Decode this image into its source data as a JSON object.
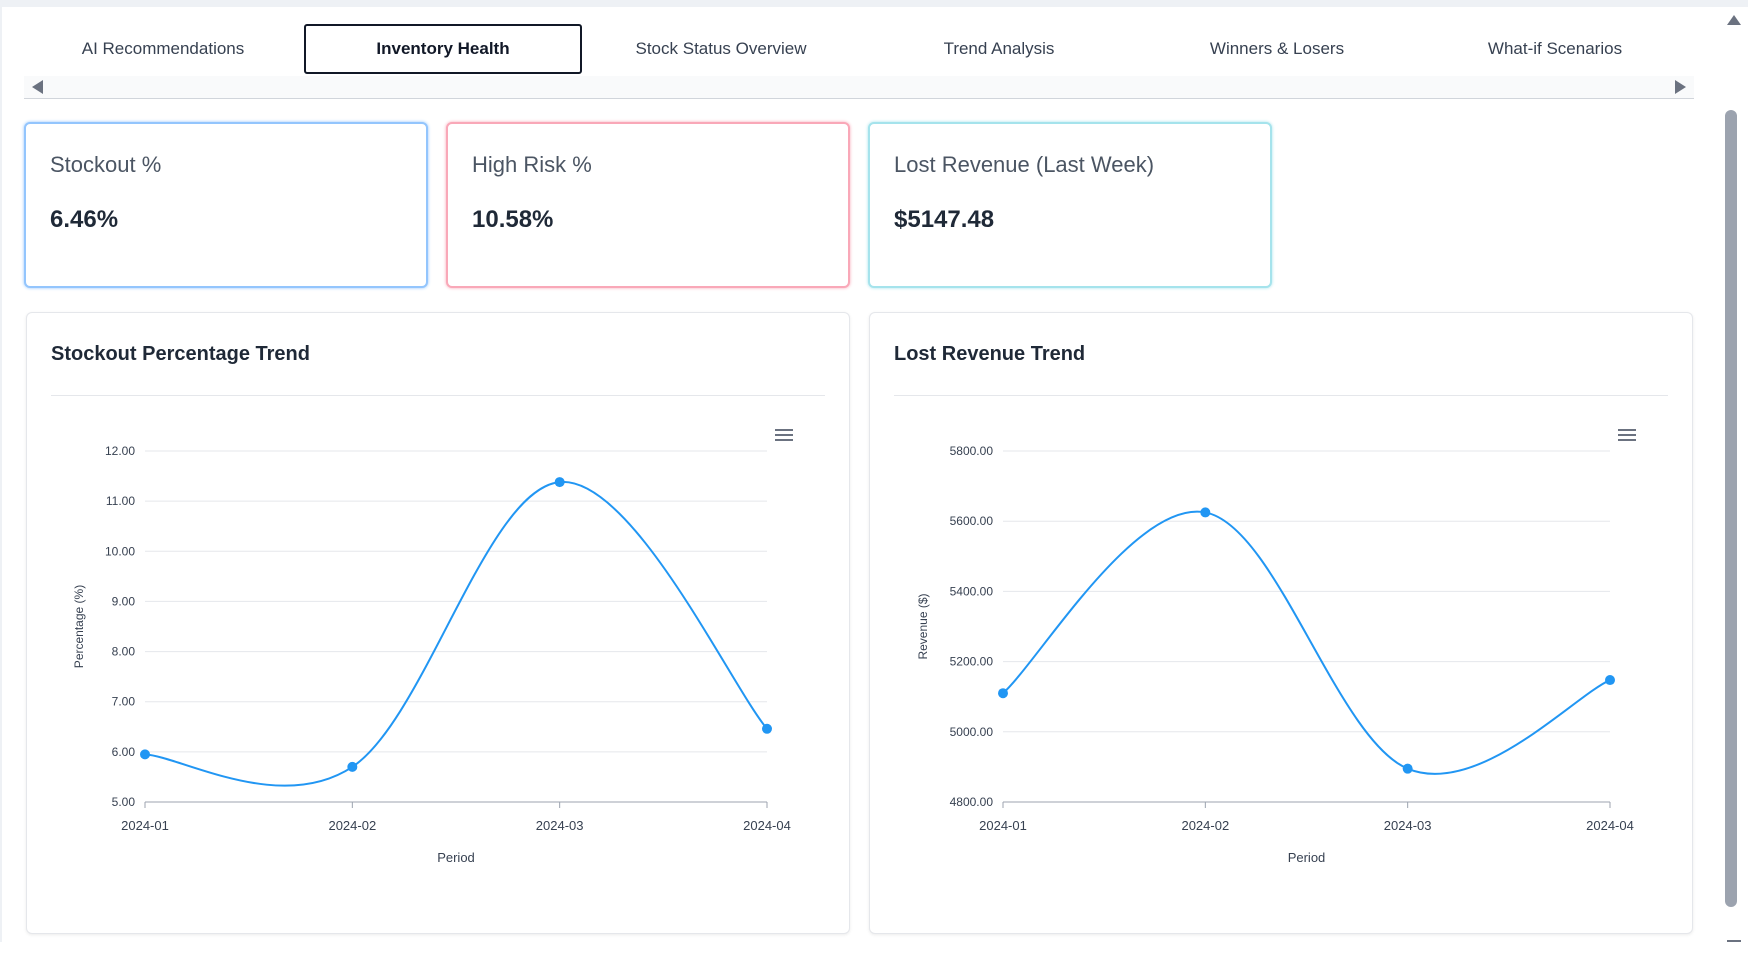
{
  "tabs": [
    {
      "label": "AI Recommendations",
      "active": false
    },
    {
      "label": "Inventory Health",
      "active": true
    },
    {
      "label": "Stock Status Overview",
      "active": false
    },
    {
      "label": "Trend Analysis",
      "active": false
    },
    {
      "label": "Winners & Losers",
      "active": false
    },
    {
      "label": "What-if Scenarios",
      "active": false
    }
  ],
  "kpis": [
    {
      "label": "Stockout %",
      "value": "6.46%",
      "border_color": "#93c5fd"
    },
    {
      "label": "High Risk %",
      "value": "10.58%",
      "border_color": "#f9a8b8"
    },
    {
      "label": "Lost Revenue (Last Week)",
      "value": "$5147.48",
      "border_color": "#a5e3ec"
    }
  ],
  "colors": {
    "accent": "#2196f3"
  },
  "chart_data": [
    {
      "type": "line",
      "title": "Stockout Percentage Trend",
      "xlabel": "Period",
      "ylabel": "Percentage (%)",
      "categories": [
        "2024-01",
        "2024-02",
        "2024-03",
        "2024-04"
      ],
      "series": [
        {
          "values": [
            5.95,
            5.7,
            11.38,
            6.46
          ]
        }
      ],
      "ylim": [
        5,
        12
      ],
      "yticks": [
        "5.00",
        "6.00",
        "7.00",
        "8.00",
        "9.00",
        "10.00",
        "11.00",
        "12.00"
      ],
      "grid": true,
      "menu_icon": "hamburger-menu-icon"
    },
    {
      "type": "line",
      "title": "Lost Revenue Trend",
      "xlabel": "Period",
      "ylabel": "Revenue ($)",
      "categories": [
        "2024-01",
        "2024-02",
        "2024-03",
        "2024-04"
      ],
      "series": [
        {
          "values": [
            5110,
            5625,
            4895,
            5147.48
          ]
        }
      ],
      "ylim": [
        4800,
        5800
      ],
      "yticks": [
        "4800.00",
        "5000.00",
        "5200.00",
        "5400.00",
        "5600.00",
        "5800.00"
      ],
      "grid": true,
      "menu_icon": "hamburger-menu-icon"
    }
  ]
}
